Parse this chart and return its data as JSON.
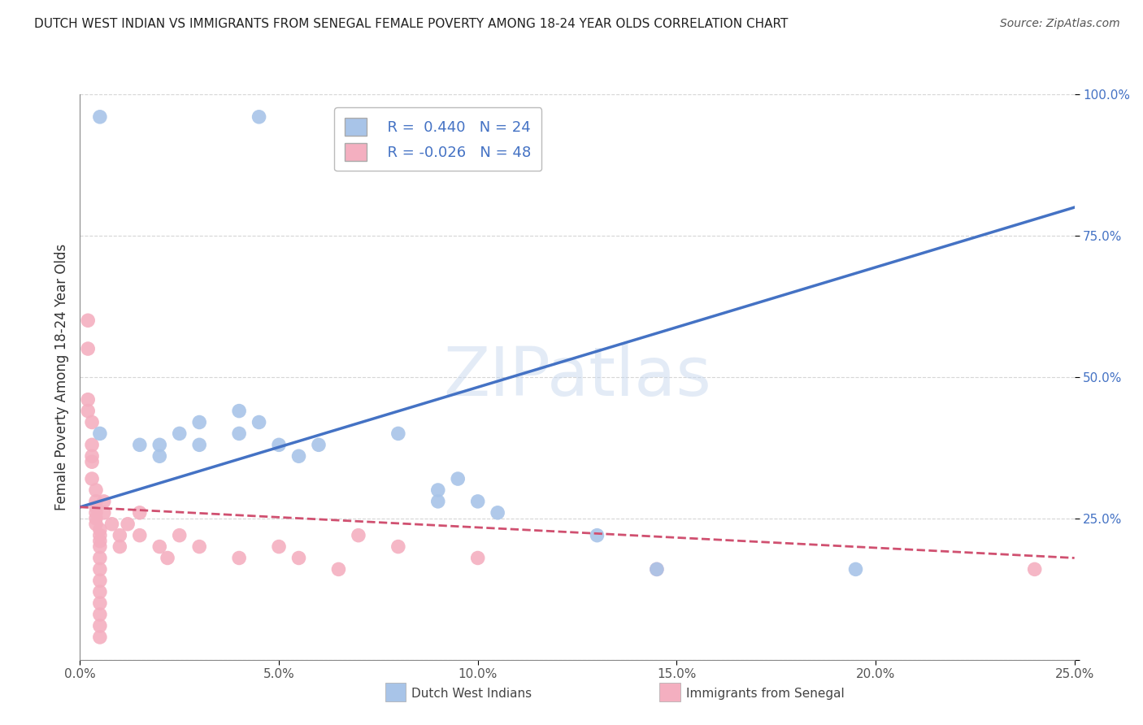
{
  "title": "DUTCH WEST INDIAN VS IMMIGRANTS FROM SENEGAL FEMALE POVERTY AMONG 18-24 YEAR OLDS CORRELATION CHART",
  "source": "Source: ZipAtlas.com",
  "ylabel": "Female Poverty Among 18-24 Year Olds",
  "xlabel": "",
  "xlim": [
    0.0,
    0.25
  ],
  "ylim": [
    0.0,
    1.0
  ],
  "xticks": [
    0.0,
    0.05,
    0.1,
    0.15,
    0.2,
    0.25
  ],
  "yticks": [
    0.0,
    0.25,
    0.5,
    0.75,
    1.0
  ],
  "xtick_labels": [
    "0.0%",
    "5.0%",
    "10.0%",
    "15.0%",
    "20.0%",
    "25.0%"
  ],
  "ytick_labels": [
    "",
    "25.0%",
    "50.0%",
    "75.0%",
    "100.0%"
  ],
  "watermark_text": "ZIPatlas",
  "legend_blue_label": "Dutch West Indians",
  "legend_pink_label": "Immigrants from Senegal",
  "blue_R": "0.440",
  "blue_N": "24",
  "pink_R": "-0.026",
  "pink_N": "48",
  "blue_color": "#a8c4e8",
  "pink_color": "#f4afc0",
  "blue_line_color": "#4472c4",
  "pink_line_color": "#d05070",
  "blue_scatter": [
    [
      0.005,
      0.96
    ],
    [
      0.045,
      0.96
    ],
    [
      0.005,
      0.4
    ],
    [
      0.015,
      0.38
    ],
    [
      0.02,
      0.36
    ],
    [
      0.02,
      0.38
    ],
    [
      0.025,
      0.4
    ],
    [
      0.03,
      0.42
    ],
    [
      0.03,
      0.38
    ],
    [
      0.04,
      0.44
    ],
    [
      0.04,
      0.4
    ],
    [
      0.045,
      0.42
    ],
    [
      0.05,
      0.38
    ],
    [
      0.055,
      0.36
    ],
    [
      0.06,
      0.38
    ],
    [
      0.08,
      0.4
    ],
    [
      0.09,
      0.3
    ],
    [
      0.09,
      0.28
    ],
    [
      0.095,
      0.32
    ],
    [
      0.1,
      0.28
    ],
    [
      0.105,
      0.26
    ],
    [
      0.13,
      0.22
    ],
    [
      0.145,
      0.16
    ],
    [
      0.195,
      0.16
    ]
  ],
  "pink_scatter": [
    [
      0.002,
      0.6
    ],
    [
      0.002,
      0.55
    ],
    [
      0.002,
      0.46
    ],
    [
      0.002,
      0.44
    ],
    [
      0.003,
      0.42
    ],
    [
      0.003,
      0.38
    ],
    [
      0.003,
      0.36
    ],
    [
      0.003,
      0.35
    ],
    [
      0.003,
      0.32
    ],
    [
      0.004,
      0.3
    ],
    [
      0.004,
      0.28
    ],
    [
      0.004,
      0.27
    ],
    [
      0.004,
      0.26
    ],
    [
      0.004,
      0.25
    ],
    [
      0.004,
      0.24
    ],
    [
      0.005,
      0.23
    ],
    [
      0.005,
      0.22
    ],
    [
      0.005,
      0.21
    ],
    [
      0.005,
      0.2
    ],
    [
      0.005,
      0.18
    ],
    [
      0.005,
      0.16
    ],
    [
      0.005,
      0.14
    ],
    [
      0.005,
      0.12
    ],
    [
      0.005,
      0.1
    ],
    [
      0.005,
      0.08
    ],
    [
      0.005,
      0.06
    ],
    [
      0.005,
      0.04
    ],
    [
      0.006,
      0.28
    ],
    [
      0.006,
      0.26
    ],
    [
      0.008,
      0.24
    ],
    [
      0.01,
      0.22
    ],
    [
      0.01,
      0.2
    ],
    [
      0.012,
      0.24
    ],
    [
      0.015,
      0.26
    ],
    [
      0.015,
      0.22
    ],
    [
      0.02,
      0.2
    ],
    [
      0.022,
      0.18
    ],
    [
      0.025,
      0.22
    ],
    [
      0.03,
      0.2
    ],
    [
      0.04,
      0.18
    ],
    [
      0.05,
      0.2
    ],
    [
      0.055,
      0.18
    ],
    [
      0.065,
      0.16
    ],
    [
      0.07,
      0.22
    ],
    [
      0.08,
      0.2
    ],
    [
      0.1,
      0.18
    ],
    [
      0.145,
      0.16
    ],
    [
      0.24,
      0.16
    ]
  ],
  "blue_line_x": [
    0.0,
    0.25
  ],
  "blue_line_y": [
    0.27,
    0.8
  ],
  "pink_line_x": [
    0.0,
    0.25
  ],
  "pink_line_y": [
    0.27,
    0.18
  ],
  "background_color": "#ffffff",
  "grid_color": "#cccccc"
}
